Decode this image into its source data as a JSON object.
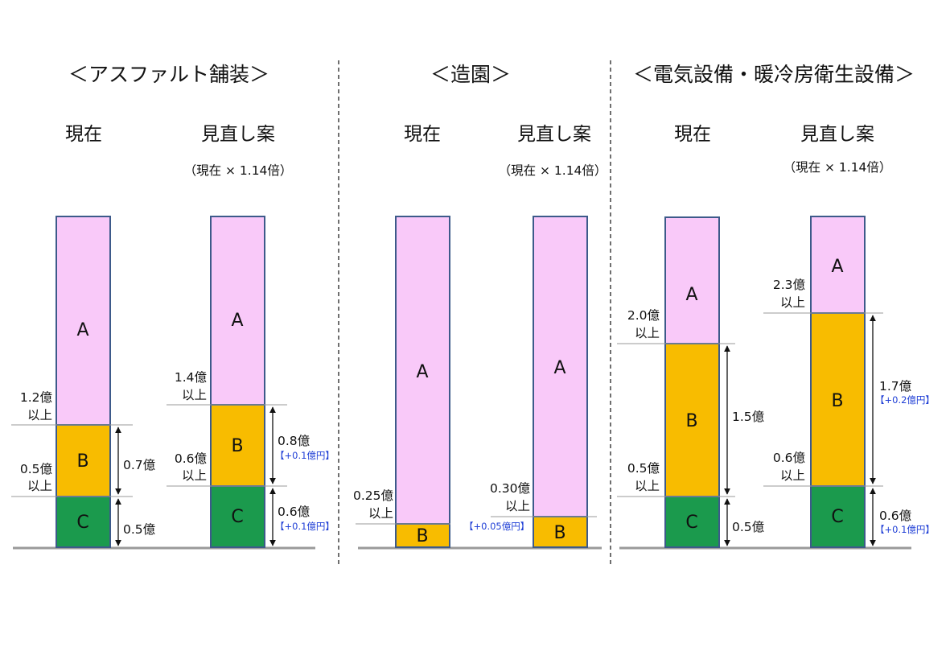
{
  "colors": {
    "A": "#f9c9f9",
    "B": "#f8bc00",
    "C": "#1b9a4d",
    "border": "#3d5a8a",
    "divider": "#222222",
    "baseline": "#9a9a9a",
    "increase_note": "#1f3fd6"
  },
  "sections": [
    {
      "title": "＜アスファルト舗装＞",
      "columns": [
        {
          "heading": "現在",
          "subheading": "",
          "segments": [
            {
              "label": "A"
            },
            {
              "label": "B"
            },
            {
              "label": "C"
            }
          ],
          "thresholds": [
            {
              "value": "1.2億",
              "suffix": "以上"
            },
            {
              "value": "0.5億",
              "suffix": "以上"
            }
          ],
          "spans": [
            {
              "value": "0.7億",
              "note": ""
            },
            {
              "value": "0.5億",
              "note": ""
            }
          ]
        },
        {
          "heading": "見直し案",
          "subheading": "（現在 × 1.14倍）",
          "segments": [
            {
              "label": "A"
            },
            {
              "label": "B"
            },
            {
              "label": "C"
            }
          ],
          "thresholds": [
            {
              "value": "1.4億",
              "suffix": "以上"
            },
            {
              "value": "0.6億",
              "suffix": "以上"
            }
          ],
          "spans": [
            {
              "value": "0.8億",
              "note": "【+0.1億円】"
            },
            {
              "value": "0.6億",
              "note": "【+0.1億円】"
            }
          ]
        }
      ]
    },
    {
      "title": "＜造園＞",
      "columns": [
        {
          "heading": "現在",
          "subheading": "",
          "segments": [
            {
              "label": "A"
            },
            {
              "label": "B"
            }
          ],
          "thresholds": [
            {
              "value": "0.25億",
              "suffix": "以上"
            }
          ],
          "spans": []
        },
        {
          "heading": "見直し案",
          "subheading": "（現在 × 1.14倍）",
          "segments": [
            {
              "label": "A"
            },
            {
              "label": "B"
            }
          ],
          "thresholds": [
            {
              "value": "0.30億",
              "suffix": "以上",
              "note": "【+0.05億円】"
            }
          ],
          "spans": []
        }
      ]
    },
    {
      "title": "＜電気設備・暖冷房衛生設備＞",
      "columns": [
        {
          "heading": "現在",
          "subheading": "",
          "segments": [
            {
              "label": "A"
            },
            {
              "label": "B"
            },
            {
              "label": "C"
            }
          ],
          "thresholds": [
            {
              "value": "2.0億",
              "suffix": "以上"
            },
            {
              "value": "0.5億",
              "suffix": "以上"
            }
          ],
          "spans": [
            {
              "value": "1.5億",
              "note": ""
            },
            {
              "value": "0.5億",
              "note": ""
            }
          ]
        },
        {
          "heading": "見直し案",
          "subheading": "（現在 × 1.14倍）",
          "segments": [
            {
              "label": "A"
            },
            {
              "label": "B"
            },
            {
              "label": "C"
            }
          ],
          "thresholds": [
            {
              "value": "2.3億",
              "suffix": "以上"
            },
            {
              "value": "0.6億",
              "suffix": "以上"
            }
          ],
          "spans": [
            {
              "value": "1.7億",
              "note": "【+0.2億円】"
            },
            {
              "value": "0.6億",
              "note": "【+0.1億円】"
            }
          ]
        }
      ]
    }
  ]
}
